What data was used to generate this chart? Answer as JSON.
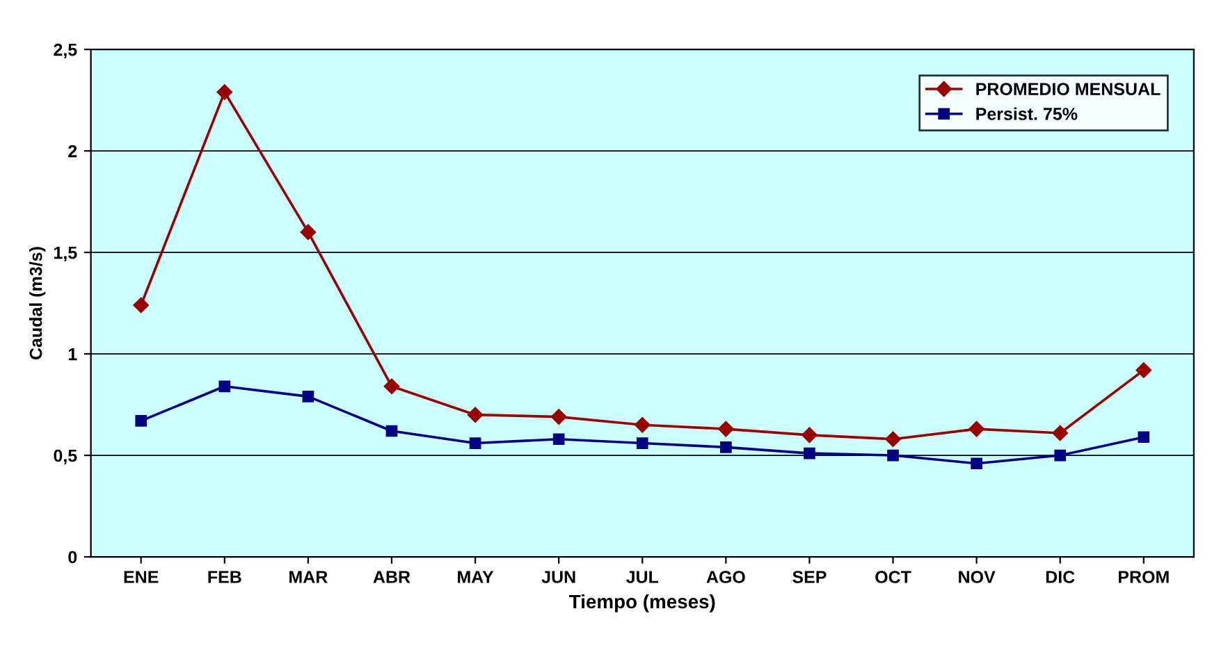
{
  "chart_data": {
    "type": "line",
    "xlabel": "Tiempo (meses)",
    "ylabel": "Caudal (m3/s)",
    "categories": [
      "ENE",
      "FEB",
      "MAR",
      "ABR",
      "MAY",
      "JUN",
      "JUL",
      "AGO",
      "SEP",
      "OCT",
      "NOV",
      "DIC",
      "PROM"
    ],
    "series": [
      {
        "name": "PROMEDIO MENSUAL",
        "color": "#990000",
        "marker": "diamond",
        "values": [
          1.24,
          2.29,
          1.6,
          0.84,
          0.7,
          0.69,
          0.65,
          0.63,
          0.6,
          0.58,
          0.63,
          0.61,
          0.92
        ]
      },
      {
        "name": "Persist. 75%",
        "color": "#000080",
        "marker": "square",
        "values": [
          0.67,
          0.84,
          0.79,
          0.62,
          0.56,
          0.58,
          0.56,
          0.54,
          0.51,
          0.5,
          0.46,
          0.5,
          0.59
        ]
      }
    ],
    "ylim": [
      0,
      2.5
    ],
    "yticks": [
      0,
      {
        "value": 0.5,
        "label": "0,5"
      },
      1,
      {
        "value": 1.5,
        "label": "1,5"
      },
      2,
      {
        "value": 2.5,
        "label": "2,5"
      }
    ],
    "grid": "y",
    "legend": "top right",
    "line_style": "solid"
  }
}
